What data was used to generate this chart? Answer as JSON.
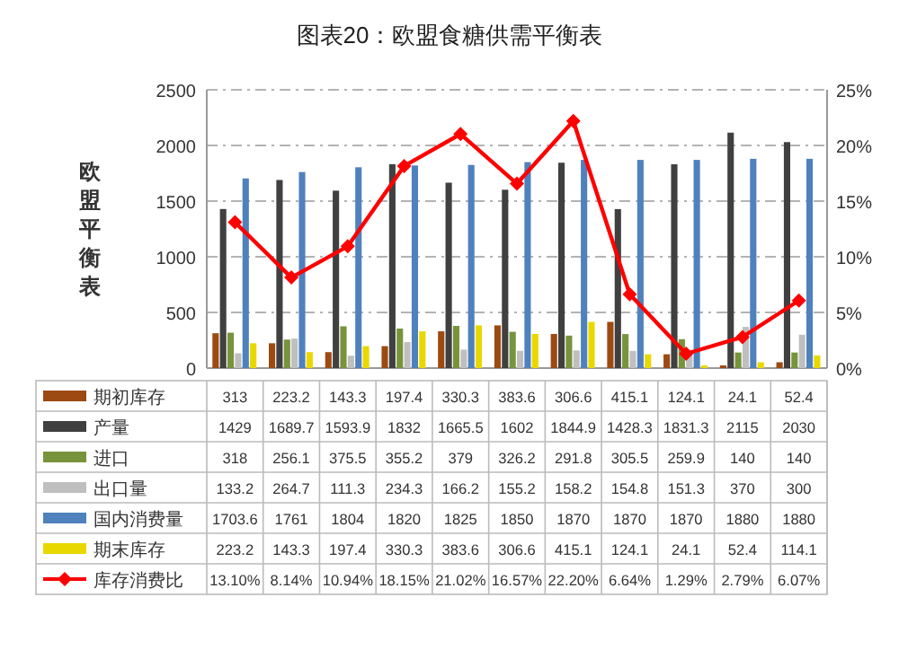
{
  "chart_data": {
    "type": "bar",
    "title": "图表20：欧盟食糖供需平衡表",
    "ylabel": "欧盟平衡表",
    "categories": [
      null,
      null,
      null,
      null,
      null,
      null,
      null,
      null,
      null,
      null,
      null
    ],
    "ylim": [
      0,
      2500
    ],
    "yticks": [
      0,
      500,
      1000,
      1500,
      2000,
      2500
    ],
    "y2lim": [
      0,
      25
    ],
    "y2ticks": [
      {
        "value": 0,
        "label": "0%"
      },
      {
        "value": 5,
        "label": "5%"
      },
      {
        "value": 10,
        "label": "10%"
      },
      {
        "value": 15,
        "label": "15%"
      },
      {
        "value": 20,
        "label": "20%"
      },
      {
        "value": 25,
        "label": "25%"
      }
    ],
    "grid": "y",
    "legend": "bottom",
    "series": [
      {
        "name": "期初库存",
        "color": "#9c4a12",
        "values": [
          313,
          223.2,
          143.3,
          197.4,
          330.3,
          383.6,
          306.6,
          415.1,
          124.1,
          24.1,
          52.4
        ],
        "value_labels": [
          "313",
          "223.2",
          "143.3",
          "197.4",
          "330.3",
          "383.6",
          "306.6",
          "415.1",
          "124.1",
          "24.1",
          "52.4"
        ]
      },
      {
        "name": "产量",
        "color": "#404040",
        "values": [
          1429,
          1689.7,
          1593.9,
          1832,
          1665.5,
          1602,
          1844.9,
          1428.3,
          1831.3,
          2115,
          2030
        ],
        "value_labels": [
          "1429",
          "1689.7",
          "1593.9",
          "1832",
          "1665.5",
          "1602",
          "1844.9",
          "1428.3",
          "1831.3",
          "2115",
          "2030"
        ]
      },
      {
        "name": "进口",
        "color": "#77933c",
        "values": [
          318,
          256.1,
          375.5,
          355.2,
          379,
          326.2,
          291.8,
          305.5,
          259.9,
          140,
          140
        ],
        "value_labels": [
          "318",
          "256.1",
          "375.5",
          "355.2",
          "379",
          "326.2",
          "291.8",
          "305.5",
          "259.9",
          "140",
          "140"
        ]
      },
      {
        "name": "出口量",
        "color": "#bfbfbf",
        "values": [
          133.2,
          264.7,
          111.3,
          234.3,
          166.2,
          155.2,
          158.2,
          154.8,
          151.3,
          370,
          300
        ],
        "value_labels": [
          "133.2",
          "264.7",
          "111.3",
          "234.3",
          "166.2",
          "155.2",
          "158.2",
          "154.8",
          "151.3",
          "370",
          "300"
        ]
      },
      {
        "name": "国内消费量",
        "color": "#4f81bd",
        "values": [
          1703.6,
          1761,
          1804,
          1820,
          1825,
          1850,
          1870,
          1870,
          1870,
          1880,
          1880
        ],
        "value_labels": [
          "1703.6",
          "1761",
          "1804",
          "1820",
          "1825",
          "1850",
          "1870",
          "1870",
          "1870",
          "1880",
          "1880"
        ]
      },
      {
        "name": "期末库存",
        "color": "#e8d800",
        "values": [
          223.2,
          143.3,
          197.4,
          330.3,
          383.6,
          306.6,
          415.1,
          124.1,
          24.1,
          52.4,
          114.1
        ],
        "value_labels": [
          "223.2",
          "143.3",
          "197.4",
          "330.3",
          "383.6",
          "306.6",
          "415.1",
          "124.1",
          "24.1",
          "52.4",
          "114.1"
        ]
      },
      {
        "name": "库存消费比",
        "type": "line",
        "axis": "y2",
        "marker": "diamond",
        "line_style": "solid",
        "color": "#ff0000",
        "values": [
          13.1,
          8.14,
          10.94,
          18.15,
          21.02,
          16.57,
          22.2,
          6.64,
          1.29,
          2.79,
          6.07
        ],
        "value_labels": [
          "13.10%",
          "8.14%",
          "10.94%",
          "18.15%",
          "21.02%",
          "16.57%",
          "22.20%",
          "6.64%",
          "1.29%",
          "2.79%",
          "6.07%"
        ]
      }
    ]
  }
}
